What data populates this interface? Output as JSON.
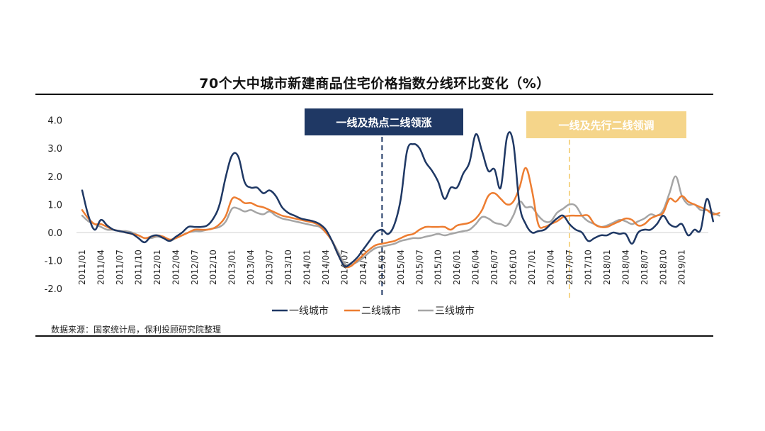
{
  "chart_data": {
    "type": "line",
    "title": "70个大中城市新建商品住宅价格指数分线环比变化（%）",
    "ylabel": "%",
    "ylim": [
      -2.0,
      4.0
    ],
    "yticks": [
      "4.0",
      "3.0",
      "2.0",
      "1.0",
      "0.0",
      "-1.0",
      "-2.0"
    ],
    "ytick_values": [
      4.0,
      3.0,
      2.0,
      1.0,
      0.0,
      -1.0,
      -2.0
    ],
    "x_start": "2011/01",
    "x_tick_labels": [
      "2011/01",
      "2011/04",
      "2011/07",
      "2011/10",
      "2012/01",
      "2012/04",
      "2012/07",
      "2012/10",
      "2013/01",
      "2013/04",
      "2013/07",
      "2013/10",
      "2014/01",
      "2014/04",
      "2014/07",
      "2014/10",
      "2015/01",
      "2015/04",
      "2015/07",
      "2015/10",
      "2016/01",
      "2016/04",
      "2016/07",
      "2016/10",
      "2017/01",
      "2017/04",
      "2017/07",
      "2017/10",
      "2018/01",
      "2018/04",
      "2018/07",
      "2018/10",
      "2019/01"
    ],
    "grid": false,
    "legend_position": "bottom",
    "series": [
      {
        "name": "一线城市",
        "color": "#1f3864",
        "values": [
          1.5,
          0.6,
          0.1,
          0.45,
          0.25,
          0.1,
          0.05,
          0.0,
          -0.05,
          -0.2,
          -0.35,
          -0.15,
          -0.1,
          -0.2,
          -0.3,
          -0.15,
          0.0,
          0.2,
          0.2,
          0.2,
          0.25,
          0.5,
          1.0,
          2.0,
          2.75,
          2.7,
          1.8,
          1.6,
          1.6,
          1.4,
          1.5,
          1.3,
          0.9,
          0.7,
          0.6,
          0.5,
          0.45,
          0.4,
          0.3,
          0.1,
          -0.3,
          -0.8,
          -1.2,
          -1.1,
          -0.9,
          -0.6,
          -0.3,
          0.0,
          0.1,
          -0.05,
          0.3,
          1.2,
          2.9,
          3.15,
          3.0,
          2.5,
          2.2,
          1.8,
          1.2,
          1.6,
          1.6,
          2.1,
          2.5,
          3.5,
          2.9,
          2.2,
          2.25,
          1.6,
          3.4,
          3.2,
          1.0,
          0.3,
          0.0,
          0.05,
          0.1,
          0.3,
          0.5,
          0.6,
          0.3,
          0.1,
          0.0,
          -0.3,
          -0.2,
          -0.1,
          -0.1,
          0.0,
          -0.05,
          -0.05,
          -0.4,
          0.0,
          0.1,
          0.1,
          0.3,
          0.6,
          0.3,
          0.2,
          0.3,
          -0.1,
          0.1,
          0.1,
          1.2,
          0.4
        ]
      },
      {
        "name": "二线城市",
        "color": "#ed7d31",
        "values": [
          0.8,
          0.5,
          0.3,
          0.3,
          0.2,
          0.1,
          0.05,
          0.0,
          -0.05,
          -0.1,
          -0.2,
          -0.15,
          -0.1,
          -0.15,
          -0.25,
          -0.2,
          -0.1,
          0.0,
          0.1,
          0.1,
          0.1,
          0.15,
          0.3,
          0.6,
          1.2,
          1.2,
          1.05,
          1.05,
          0.95,
          0.9,
          0.8,
          0.7,
          0.6,
          0.55,
          0.5,
          0.45,
          0.4,
          0.35,
          0.25,
          0.0,
          -0.3,
          -0.8,
          -1.2,
          -1.2,
          -1.0,
          -0.8,
          -0.6,
          -0.45,
          -0.4,
          -0.35,
          -0.3,
          -0.2,
          -0.1,
          -0.05,
          0.1,
          0.2,
          0.2,
          0.2,
          0.2,
          0.1,
          0.25,
          0.3,
          0.35,
          0.5,
          0.8,
          1.3,
          1.4,
          1.2,
          1.0,
          1.1,
          1.6,
          2.3,
          1.5,
          0.3,
          0.2,
          0.3,
          0.4,
          0.55,
          0.6,
          0.6,
          0.6,
          0.6,
          0.3,
          0.2,
          0.2,
          0.3,
          0.4,
          0.5,
          0.45,
          0.25,
          0.3,
          0.5,
          0.6,
          0.7,
          1.2,
          1.1,
          1.3,
          1.1,
          1.0,
          0.9,
          0.8,
          0.65,
          0.7
        ]
      },
      {
        "name": "三线城市",
        "color": "#a5a5a5",
        "values": [
          0.6,
          0.4,
          0.3,
          0.2,
          0.1,
          0.1,
          0.05,
          0.05,
          0.0,
          -0.1,
          -0.2,
          -0.2,
          -0.15,
          -0.2,
          -0.3,
          -0.2,
          -0.1,
          0.0,
          0.05,
          0.05,
          0.1,
          0.15,
          0.2,
          0.4,
          0.85,
          0.85,
          0.75,
          0.8,
          0.7,
          0.65,
          0.75,
          0.6,
          0.5,
          0.45,
          0.4,
          0.35,
          0.3,
          0.25,
          0.2,
          0.0,
          -0.3,
          -0.7,
          -1.1,
          -1.15,
          -1.05,
          -0.9,
          -0.7,
          -0.55,
          -0.5,
          -0.45,
          -0.4,
          -0.3,
          -0.25,
          -0.2,
          -0.2,
          -0.15,
          -0.1,
          -0.05,
          -0.1,
          -0.05,
          0.0,
          0.05,
          0.1,
          0.3,
          0.55,
          0.5,
          0.35,
          0.3,
          0.25,
          0.6,
          1.1,
          0.9,
          0.9,
          0.6,
          0.4,
          0.4,
          0.7,
          0.85,
          1.0,
          0.95,
          0.6,
          0.4,
          0.3,
          0.2,
          0.25,
          0.35,
          0.45,
          0.4,
          0.3,
          0.4,
          0.5,
          0.65,
          0.6,
          0.8,
          1.4,
          2.0,
          1.3,
          1.0,
          1.0,
          0.8,
          0.8,
          0.7,
          0.6
        ]
      }
    ],
    "annotations": [
      {
        "text": "一线及热点二线领涨",
        "color": "#1f3864",
        "at": "2015/01"
      },
      {
        "text": "一线及先行二线领调",
        "color": "#f5d58a",
        "at": "2017/07"
      }
    ]
  },
  "source_note": "数据来源：国家统计局，保利投顾研究院整理"
}
